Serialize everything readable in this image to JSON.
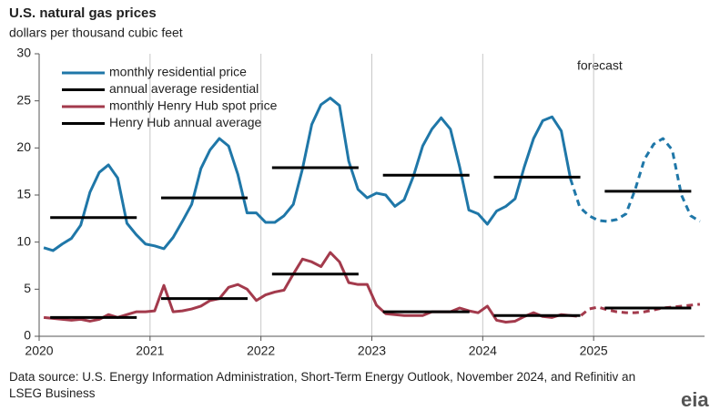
{
  "chart_data": {
    "type": "line",
    "title": "U.S. natural gas prices",
    "subtitle": "dollars per thousand  cubic feet",
    "annotation": "forecast",
    "source": "Data source: U.S. Energy Information Administration, Short-Term Energy Outlook, November 2024, and Refinitiv an LSEG Business",
    "logo": "eia",
    "forecast_start": "2024-10",
    "grid": "x",
    "legend": "upper left",
    "xlim": [
      2020,
      2026
    ],
    "xticks": [
      2020,
      2021,
      2022,
      2023,
      2024,
      2025
    ],
    "ylim": [
      0,
      30
    ],
    "yticks": [
      0,
      5,
      10,
      15,
      20,
      25,
      30
    ],
    "months": [
      "2020-01",
      "2020-02",
      "2020-03",
      "2020-04",
      "2020-05",
      "2020-06",
      "2020-07",
      "2020-08",
      "2020-09",
      "2020-10",
      "2020-11",
      "2020-12",
      "2021-01",
      "2021-02",
      "2021-03",
      "2021-04",
      "2021-05",
      "2021-06",
      "2021-07",
      "2021-08",
      "2021-09",
      "2021-10",
      "2021-11",
      "2021-12",
      "2022-01",
      "2022-02",
      "2022-03",
      "2022-04",
      "2022-05",
      "2022-06",
      "2022-07",
      "2022-08",
      "2022-09",
      "2022-10",
      "2022-11",
      "2022-12",
      "2023-01",
      "2023-02",
      "2023-03",
      "2023-04",
      "2023-05",
      "2023-06",
      "2023-07",
      "2023-08",
      "2023-09",
      "2023-10",
      "2023-11",
      "2023-12",
      "2024-01",
      "2024-02",
      "2024-03",
      "2024-04",
      "2024-05",
      "2024-06",
      "2024-07",
      "2024-08",
      "2024-09",
      "2024-10",
      "2024-11",
      "2024-12",
      "2025-01",
      "2025-02",
      "2025-03",
      "2025-04",
      "2025-05",
      "2025-06",
      "2025-07",
      "2025-08",
      "2025-09",
      "2025-10",
      "2025-11",
      "2025-12"
    ],
    "years": [
      2020,
      2021,
      2022,
      2023,
      2024,
      2025
    ],
    "series": [
      {
        "name": "monthly residential price",
        "kind": "monthly",
        "color": "#1f77a8",
        "values": [
          9.4,
          9.1,
          9.8,
          10.4,
          11.8,
          15.3,
          17.4,
          18.2,
          16.8,
          12.0,
          10.8,
          9.8,
          9.6,
          9.3,
          10.5,
          12.2,
          14.0,
          17.8,
          19.8,
          21.0,
          20.2,
          17.2,
          13.1,
          13.1,
          12.1,
          12.1,
          12.8,
          14.0,
          17.8,
          22.5,
          24.6,
          25.3,
          24.5,
          18.6,
          15.6,
          14.7,
          15.2,
          15.0,
          13.8,
          14.5,
          17.0,
          20.2,
          22.0,
          23.2,
          22.0,
          18.0,
          13.4,
          13.0,
          11.9,
          13.3,
          13.8,
          14.6,
          18.0,
          21.0,
          22.9,
          23.3,
          21.8,
          16.7,
          13.7,
          12.8,
          12.3,
          12.2,
          12.4,
          13.0,
          15.6,
          18.8,
          20.4,
          21.0,
          19.8,
          15.0,
          12.8,
          12.2
        ]
      },
      {
        "name": "annual average residential",
        "kind": "annual",
        "color": "#000000",
        "values": [
          12.6,
          14.7,
          17.9,
          17.1,
          16.9,
          15.4
        ]
      },
      {
        "name": "monthly Henry Hub spot price",
        "kind": "monthly",
        "color": "#a33a4c",
        "values": [
          2.0,
          1.9,
          1.8,
          1.7,
          1.8,
          1.6,
          1.8,
          2.3,
          2.0,
          2.3,
          2.6,
          2.6,
          2.7,
          5.4,
          2.6,
          2.7,
          2.9,
          3.2,
          3.8,
          4.0,
          5.2,
          5.5,
          5.0,
          3.8,
          4.4,
          4.7,
          4.9,
          6.6,
          8.2,
          7.9,
          7.4,
          8.9,
          7.9,
          5.7,
          5.5,
          5.5,
          3.3,
          2.4,
          2.3,
          2.2,
          2.2,
          2.2,
          2.6,
          2.6,
          2.6,
          3.0,
          2.7,
          2.5,
          3.2,
          1.7,
          1.5,
          1.6,
          2.1,
          2.5,
          2.1,
          2.0,
          2.3,
          2.2,
          2.1,
          2.9,
          3.1,
          2.8,
          2.6,
          2.5,
          2.5,
          2.6,
          2.8,
          3.0,
          3.1,
          3.2,
          3.3,
          3.4
        ]
      },
      {
        "name": "Henry Hub annual average",
        "kind": "annual",
        "color": "#000000",
        "values": [
          2.0,
          4.0,
          6.6,
          2.6,
          2.2,
          3.0
        ]
      }
    ]
  }
}
